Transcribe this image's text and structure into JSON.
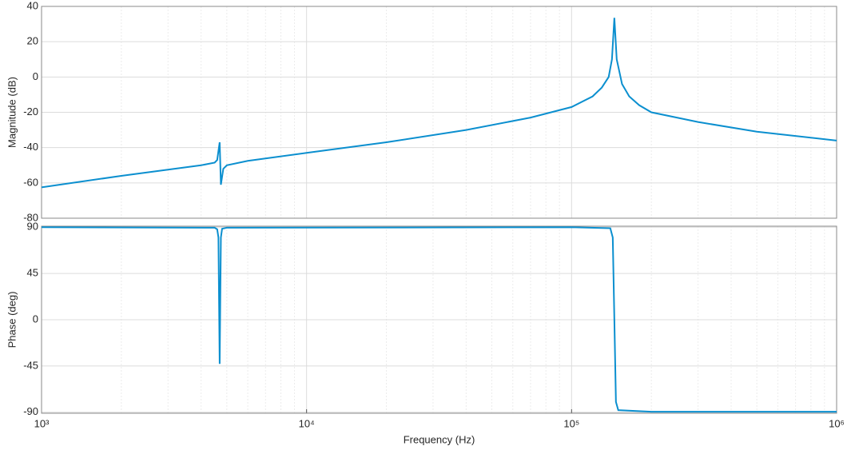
{
  "chart_data": [
    {
      "type": "line",
      "xscale": "log",
      "ylabel": "Magnitude (dB)",
      "color": "#0b8fcf",
      "grid": true,
      "xlim": [
        1000,
        1000000
      ],
      "ylim": [
        -80,
        40
      ],
      "yticks": [
        40,
        20,
        0,
        -20,
        -40,
        -60,
        -80
      ],
      "x": [
        1000,
        2000,
        3000,
        4000,
        4500,
        4600,
        4700,
        4750,
        4850,
        5000,
        6000,
        10000,
        20000,
        40000,
        70000,
        100000,
        120000,
        130000,
        138000,
        142000,
        145000,
        148000,
        155000,
        165000,
        180000,
        200000,
        300000,
        500000,
        1000000
      ],
      "values": [
        -62.5,
        -56,
        -52.5,
        -50,
        -48.5,
        -47,
        -37,
        -61,
        -52,
        -50,
        -47.5,
        -43,
        -37,
        -30,
        -23,
        -17,
        -11,
        -6,
        0,
        10,
        33.5,
        10,
        -4,
        -11,
        -16,
        -20,
        -25.5,
        -31,
        -36
      ]
    },
    {
      "type": "line",
      "xscale": "log",
      "ylabel": "Phase (deg)",
      "xlabel": "Frequency  (Hz)",
      "color": "#0b8fcf",
      "grid": true,
      "xlim": [
        1000,
        1000000
      ],
      "ylim": [
        -91,
        91
      ],
      "xticks": [
        {
          "value": 1000,
          "label": "10³"
        },
        {
          "value": 10000,
          "label": "10⁴"
        },
        {
          "value": 100000,
          "label": "10⁵"
        },
        {
          "value": 1000000,
          "label": "10⁶"
        }
      ],
      "yticks": [
        90,
        45,
        0,
        -45,
        -90
      ],
      "x": [
        1000,
        4500,
        4600,
        4650,
        4700,
        4750,
        4800,
        5000,
        100000,
        140000,
        143000,
        145000,
        147000,
        150000,
        200000,
        1000000
      ],
      "values": [
        90,
        89.5,
        88,
        80,
        -43,
        80,
        88.5,
        89.5,
        90,
        89,
        80,
        0,
        -80,
        -88,
        -89.5,
        -89.5
      ]
    }
  ]
}
